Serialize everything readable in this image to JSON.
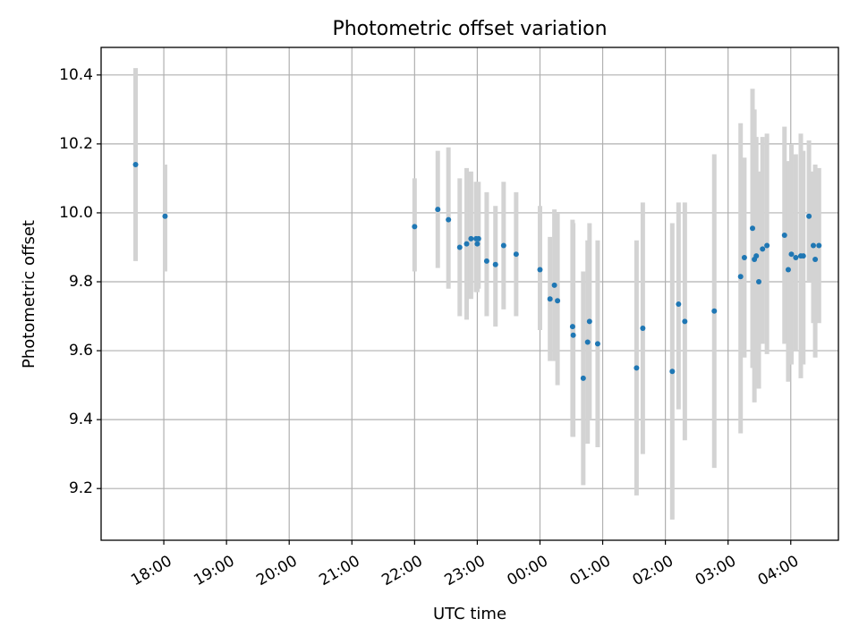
{
  "chart_data": {
    "type": "scatter",
    "title": "Photometric offset variation",
    "xlabel": "UTC time",
    "ylabel": "Photometric offset",
    "grid": true,
    "xlim_hours": [
      16.84,
      28.6
    ],
    "ylim": [
      9.05,
      10.48
    ],
    "x_ticks": [
      {
        "hour": 17.84,
        "label": "18:00"
      },
      {
        "hour": 18.84,
        "label": "19:00"
      },
      {
        "hour": 19.84,
        "label": "20:00"
      },
      {
        "hour": 20.84,
        "label": "21:00"
      },
      {
        "hour": 21.84,
        "label": "22:00"
      },
      {
        "hour": 22.84,
        "label": "23:00"
      },
      {
        "hour": 23.84,
        "label": "00:00"
      },
      {
        "hour": 24.84,
        "label": "01:00"
      },
      {
        "hour": 25.84,
        "label": "02:00"
      },
      {
        "hour": 26.84,
        "label": "03:00"
      },
      {
        "hour": 27.84,
        "label": "04:00"
      }
    ],
    "y_ticks": [
      {
        "value": 9.2,
        "label": "9.2"
      },
      {
        "value": 9.4,
        "label": "9.4"
      },
      {
        "value": 9.6,
        "label": "9.6"
      },
      {
        "value": 9.8,
        "label": "9.8"
      },
      {
        "value": 10.0,
        "label": "10.0"
      },
      {
        "value": 10.2,
        "label": "10.2"
      },
      {
        "value": 10.4,
        "label": "10.4"
      }
    ],
    "series": [
      {
        "name": "offset",
        "x_hours": [
          17.39,
          17.86,
          21.84,
          22.21,
          22.38,
          22.56,
          22.67,
          22.74,
          22.82,
          22.84,
          22.86,
          22.99,
          23.13,
          23.26,
          23.46,
          23.84,
          24.0,
          24.07,
          24.12,
          24.36,
          24.37,
          24.53,
          24.6,
          24.63,
          24.76,
          25.38,
          25.48,
          25.95,
          26.05,
          26.15,
          26.62,
          27.04,
          27.1,
          27.23,
          27.26,
          27.29,
          27.33,
          27.39,
          27.46,
          27.74,
          27.8,
          27.85,
          27.92,
          28.0,
          28.04,
          28.13,
          28.2,
          28.23,
          28.29
        ],
        "y": [
          10.14,
          9.99,
          9.96,
          10.01,
          9.98,
          9.9,
          9.91,
          9.925,
          9.925,
          9.91,
          9.925,
          9.86,
          9.85,
          9.905,
          9.88,
          9.835,
          9.75,
          9.79,
          9.745,
          9.67,
          9.645,
          9.52,
          9.625,
          9.685,
          9.62,
          9.55,
          9.665,
          9.54,
          9.735,
          9.685,
          9.715,
          9.815,
          9.87,
          9.955,
          9.865,
          9.875,
          9.8,
          9.895,
          9.905,
          9.935,
          9.835,
          9.88,
          9.87,
          9.875,
          9.875,
          9.99,
          9.905,
          9.865,
          9.905
        ],
        "yerr_low": [
          9.86,
          9.83,
          9.83,
          9.84,
          9.78,
          9.7,
          9.69,
          9.75,
          9.77,
          9.77,
          9.78,
          9.7,
          9.67,
          9.72,
          9.7,
          9.66,
          9.57,
          9.57,
          9.5,
          9.35,
          9.35,
          9.21,
          9.33,
          9.4,
          9.32,
          9.18,
          9.3,
          9.11,
          9.43,
          9.34,
          9.26,
          9.36,
          9.58,
          9.55,
          9.45,
          9.5,
          9.49,
          9.62,
          9.59,
          9.62,
          9.51,
          9.56,
          9.6,
          9.52,
          9.56,
          9.8,
          9.68,
          9.58,
          9.68
        ],
        "yerr_high": [
          10.42,
          10.14,
          10.1,
          10.18,
          10.19,
          10.1,
          10.13,
          10.12,
          10.09,
          10.06,
          10.09,
          10.06,
          10.02,
          10.09,
          10.06,
          10.02,
          9.93,
          10.01,
          10.0,
          9.98,
          9.97,
          9.83,
          9.92,
          9.97,
          9.92,
          9.92,
          10.03,
          9.97,
          10.03,
          10.03,
          10.17,
          10.26,
          10.16,
          10.36,
          10.3,
          10.22,
          10.12,
          10.22,
          10.23,
          10.25,
          10.15,
          10.2,
          10.17,
          10.23,
          10.18,
          10.21,
          10.12,
          10.14,
          10.13
        ]
      }
    ]
  },
  "colors": {
    "point": "#1f77b4",
    "errorbar": "#d3d3d3",
    "grid": "#b0b0b0"
  }
}
